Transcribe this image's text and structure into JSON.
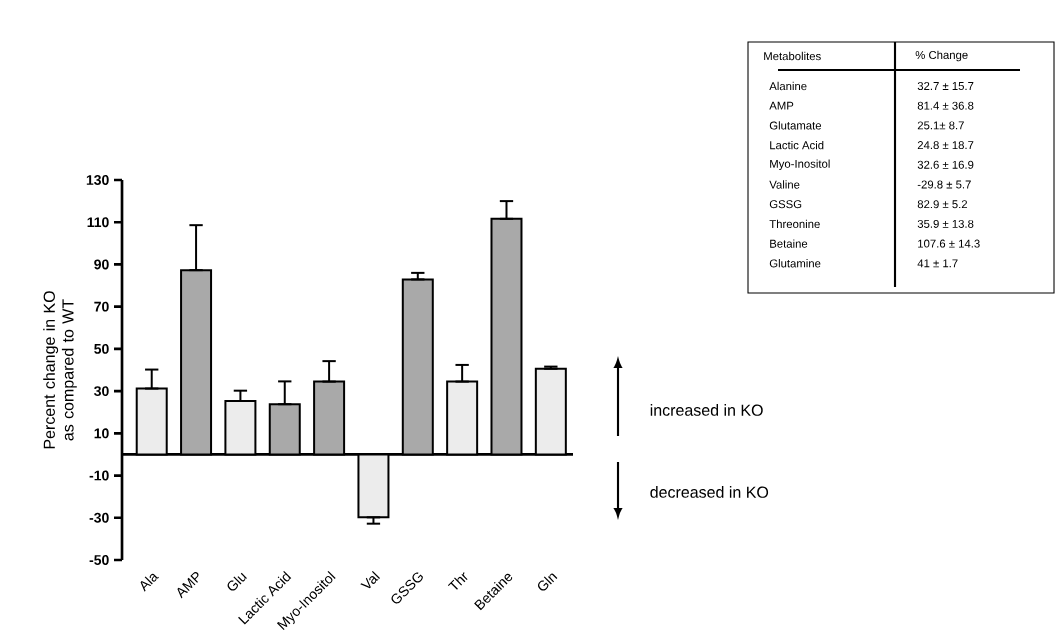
{
  "chart_data": {
    "type": "bar",
    "ylabel": "Percent change in KO as compared to WT",
    "categories": [
      "Ala",
      "AMP",
      "Glu",
      "Lactic Acid",
      "Myo-Inositol",
      "Val",
      "GSSG",
      "Thr",
      "Betaine",
      "Gln"
    ],
    "values": [
      31.2,
      87.3,
      25.3,
      23.8,
      34.5,
      -29.8,
      82.9,
      34.5,
      111.6,
      40.6
    ],
    "errors": [
      [
        31.2,
        40.2
      ],
      [
        87.3,
        108.6
      ],
      [
        25.3,
        30.2
      ],
      [
        23.8,
        34.6
      ],
      [
        34.5,
        44.2
      ],
      [
        -32.8,
        -29.8
      ],
      [
        82.9,
        86
      ],
      [
        34.5,
        42.4
      ],
      [
        111.6,
        120
      ],
      [
        40.6,
        41.6
      ]
    ],
    "colors": [
      "#ececec",
      "#a9a9a9",
      "#ececec",
      "#a9a9a9",
      "#a9a9a9",
      "#ececec",
      "#a9a9a9",
      "#ececec",
      "#a9a9a9",
      "#ececec"
    ],
    "ylim": [
      -50,
      130
    ],
    "yticks": [
      -50,
      -30,
      -10,
      10,
      30,
      50,
      70,
      90,
      110,
      130
    ],
    "annotations": [
      "increased in KO",
      "decreased in KO",
      "Metabolites",
      "% Change",
      "Alanine",
      "32.7 ± 15.7",
      "AMP",
      "81.4 ± 36.8",
      "Glutamate",
      "25.1± 8.7",
      "Lactic Acid",
      "24.8 ± 18.7",
      "Myo-Inositol",
      "32.6 ± 16.9",
      "Valine",
      "-29.8 ± 5.7",
      "GSSG",
      "82.9 ± 5.2",
      "Threonine",
      "35.9 ± 13.8",
      "Betaine",
      "107.6 ± 14.3",
      "Glutamine",
      "41 ± 1.7"
    ]
  }
}
